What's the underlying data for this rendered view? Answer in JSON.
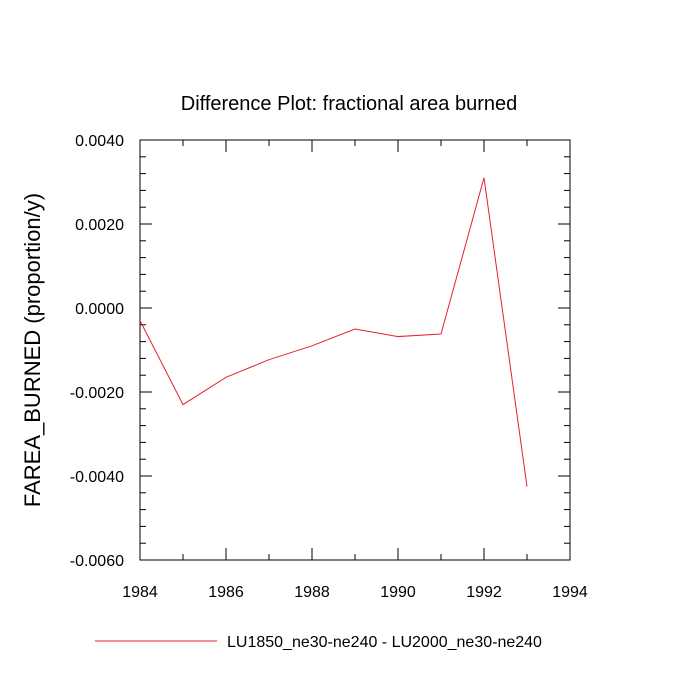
{
  "chart_data": {
    "type": "line",
    "title": "Difference Plot: fractional area burned",
    "xlabel": "",
    "ylabel": "FAREA_BURNED  (proportion/y)",
    "xlim": [
      1984,
      1994
    ],
    "ylim": [
      -0.006,
      0.004
    ],
    "xticks": [
      1984,
      1986,
      1988,
      1990,
      1992,
      1994
    ],
    "xtick_labels": [
      "1984",
      "1986",
      "1988",
      "1990",
      "1992",
      "1994"
    ],
    "yticks": [
      -0.006,
      -0.004,
      -0.002,
      0.0,
      0.002,
      0.004
    ],
    "ytick_labels": [
      "-0.0060",
      "-0.0040",
      "-0.0020",
      "0.0000",
      "0.0020",
      "0.0040"
    ],
    "grid": false,
    "legend_position": "bottom",
    "series": [
      {
        "name": "LU1850_ne30-ne240 - LU2000_ne30-ne240",
        "color": "#e8202a",
        "x": [
          1984,
          1985,
          1986,
          1987,
          1988,
          1989,
          1990,
          1991,
          1992,
          1993
        ],
        "y": [
          -0.0003,
          -0.0023,
          -0.00165,
          -0.00123,
          -0.0009,
          -0.0005,
          -0.00068,
          -0.00062,
          0.0031,
          -0.00425
        ]
      }
    ]
  }
}
